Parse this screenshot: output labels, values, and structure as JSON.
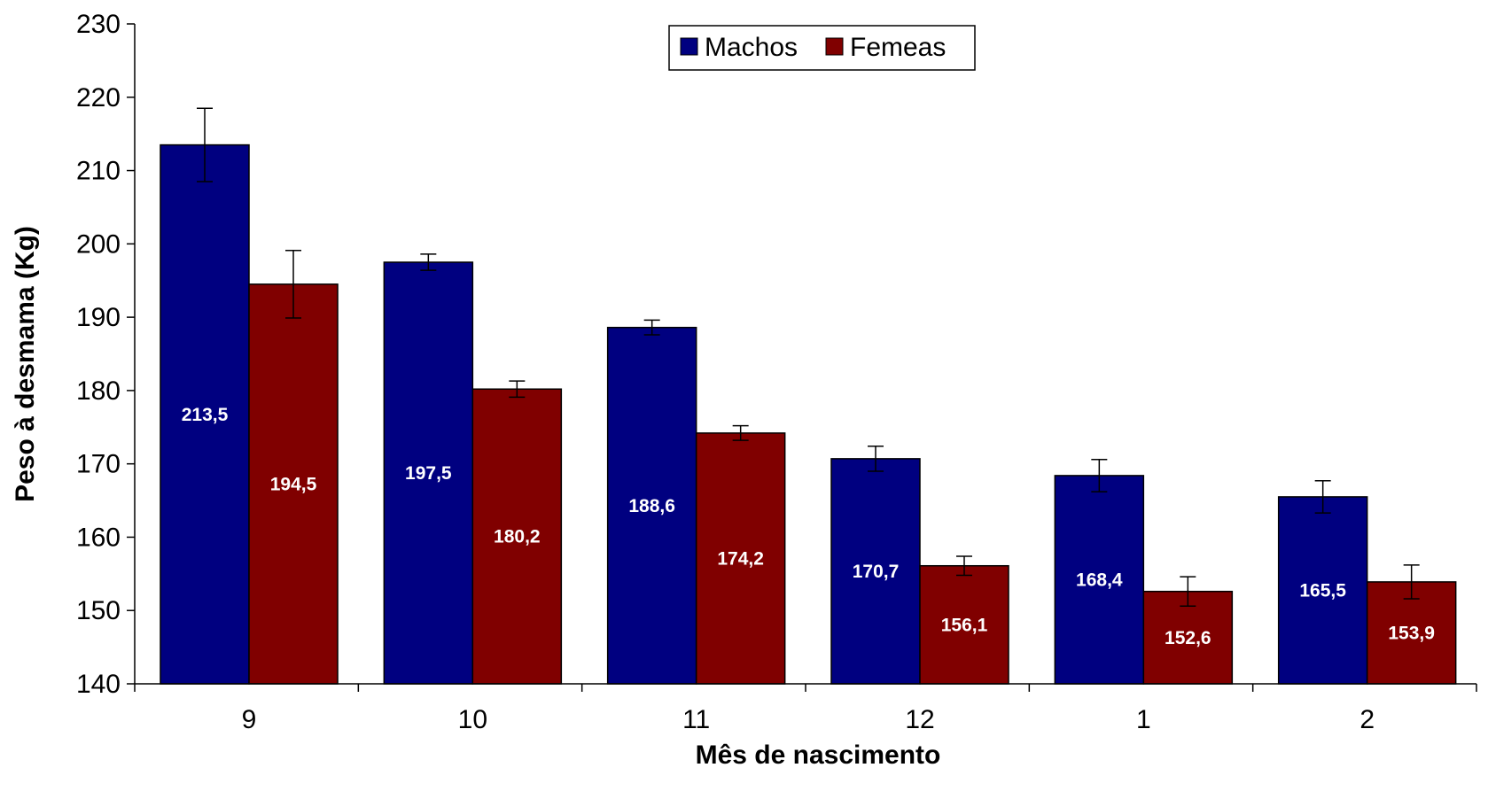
{
  "chart_data": {
    "type": "bar",
    "title": "",
    "xlabel": "Mês de nascimento",
    "ylabel": "Peso à desmama (Kg)",
    "categories": [
      "9",
      "10",
      "11",
      "12",
      "1",
      "2"
    ],
    "ylim": [
      140,
      230
    ],
    "yticks": [
      140,
      150,
      160,
      170,
      180,
      190,
      200,
      210,
      220,
      230
    ],
    "grid": false,
    "legend_position": "top-center",
    "series": [
      {
        "name": "Machos",
        "color": "#000080",
        "values": [
          213.5,
          197.5,
          188.6,
          170.7,
          168.4,
          165.5
        ],
        "labels": [
          "213,5",
          "197,5",
          "188,6",
          "170,7",
          "168,4",
          "165,5"
        ],
        "error": [
          5.0,
          1.1,
          1.0,
          1.7,
          2.2,
          2.2
        ]
      },
      {
        "name": "Femeas",
        "color": "#800000",
        "values": [
          194.5,
          180.2,
          174.2,
          156.1,
          152.6,
          153.9
        ],
        "labels": [
          "194,5",
          "180,2",
          "174,2",
          "156,1",
          "152,6",
          "153,9"
        ],
        "error": [
          4.6,
          1.1,
          1.0,
          1.3,
          2.0,
          2.3
        ]
      }
    ]
  }
}
